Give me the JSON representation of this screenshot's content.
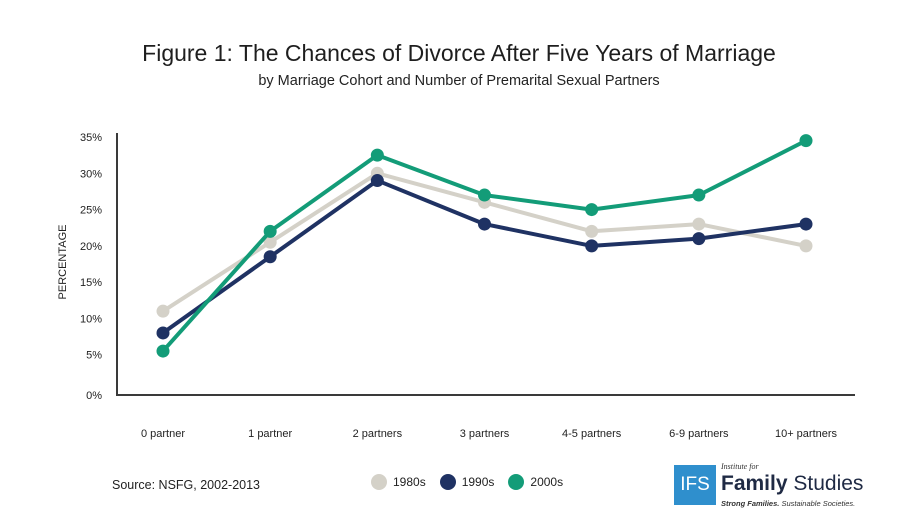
{
  "chart_data": {
    "type": "line",
    "title": "Figure 1: The Chances of Divorce After Five Years of Marriage",
    "subtitle": "by Marriage Cohort and Number of Premarital Sexual Partners",
    "xlabel": "",
    "ylabel": "PERCENTAGE",
    "categories": [
      "0 partner",
      "1 partner",
      "2 partners",
      "3 partners",
      "4-5 partners",
      "6-9 partners",
      "10+ partners"
    ],
    "y_ticks": [
      "0%",
      "5%",
      "10%",
      "15%",
      "20%",
      "25%",
      "30%",
      "35%"
    ],
    "ylim": [
      0,
      36
    ],
    "grid": false,
    "legend_position": "bottom",
    "series": [
      {
        "name": "1980s",
        "color": "#d4d1c8",
        "values": [
          11,
          20.5,
          30,
          26,
          22,
          23,
          20
        ]
      },
      {
        "name": "1990s",
        "color": "#1f3263",
        "values": [
          8,
          18.5,
          29,
          23,
          20,
          21,
          23
        ]
      },
      {
        "name": "2000s",
        "color": "#139c78",
        "values": [
          5.5,
          22,
          32.5,
          27,
          25,
          27,
          34.5
        ]
      }
    ]
  },
  "source": "Source: NSFG, 2002-2013",
  "logo": {
    "box_text": "IFS",
    "institute": "Institute for",
    "name_bold": "Family",
    "name_regular": "Studies",
    "tagline_bold": "Strong Families.",
    "tagline_regular": "Sustainable Societies."
  }
}
